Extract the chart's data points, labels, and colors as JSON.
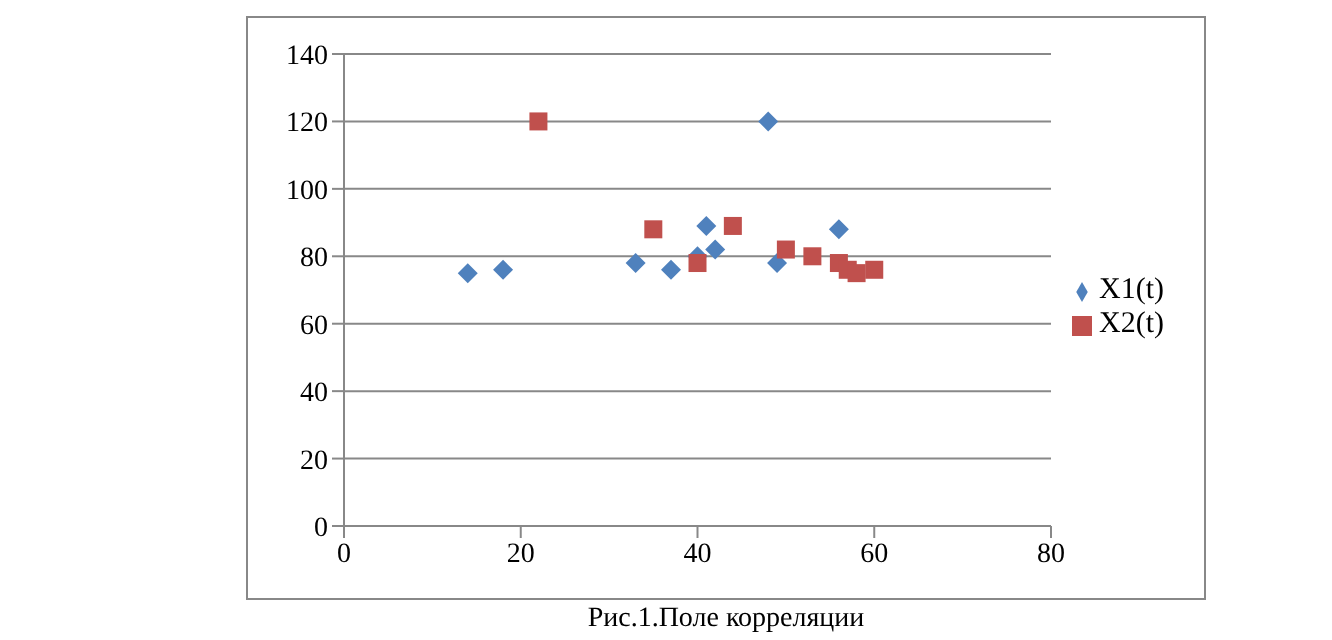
{
  "chart_data": {
    "type": "scatter",
    "annotations": [
      "Рис.1.Поле корреляции"
    ],
    "xlim": [
      0,
      80
    ],
    "xticks": [
      0,
      20,
      40,
      60,
      80
    ],
    "ylim": [
      0,
      140
    ],
    "yticks": [
      0,
      20,
      40,
      60,
      80,
      100,
      120,
      140
    ],
    "grid": "y",
    "legend": "right",
    "series": [
      {
        "name": "X1(t)",
        "color": "#4f81bd",
        "marker": "diamond",
        "x": [
          14,
          18,
          33,
          37,
          40,
          41,
          42,
          48,
          49,
          56
        ],
        "values": [
          75,
          76,
          78,
          76,
          80,
          89,
          82,
          120,
          78,
          88
        ]
      },
      {
        "name": "X2(t)",
        "color": "#c0504d",
        "marker": "square",
        "x": [
          22,
          35,
          40,
          44,
          50,
          53,
          56,
          57,
          58,
          60
        ],
        "values": [
          120,
          88,
          78,
          89,
          82,
          80,
          78,
          76,
          75,
          76
        ]
      }
    ]
  }
}
